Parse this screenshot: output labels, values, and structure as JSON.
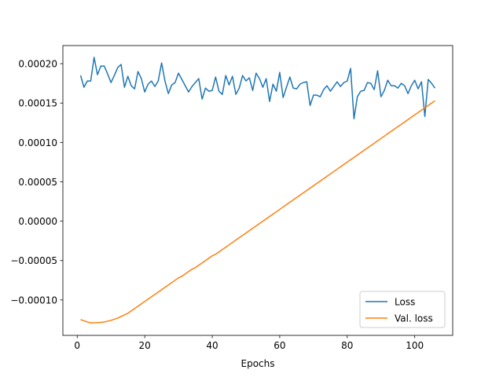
{
  "chart_data": {
    "type": "line",
    "title": "",
    "xlabel": "Epochs",
    "ylabel": "",
    "xlim": [
      -4.25,
      111.25
    ],
    "ylim": [
      -0.000145,
      0.000223
    ],
    "xticks": [
      0,
      20,
      40,
      60,
      80,
      100
    ],
    "xtick_labels": [
      "0",
      "20",
      "40",
      "60",
      "80",
      "100"
    ],
    "yticks": [
      -0.0001,
      -5e-05,
      0.0,
      5e-05,
      0.0001,
      0.00015,
      0.0002
    ],
    "ytick_labels": [
      "−0.00010",
      "−0.00005",
      "0.00000",
      "0.00005",
      "0.00010",
      "0.00015",
      "0.00020"
    ],
    "grid": false,
    "legend_position": "lower right",
    "x": [
      1,
      2,
      3,
      4,
      5,
      6,
      7,
      8,
      9,
      10,
      11,
      12,
      13,
      14,
      15,
      16,
      17,
      18,
      19,
      20,
      21,
      22,
      23,
      24,
      25,
      26,
      27,
      28,
      29,
      30,
      31,
      32,
      33,
      34,
      35,
      36,
      37,
      38,
      39,
      40,
      41,
      42,
      43,
      44,
      45,
      46,
      47,
      48,
      49,
      50,
      51,
      52,
      53,
      54,
      55,
      56,
      57,
      58,
      59,
      60,
      61,
      62,
      63,
      64,
      65,
      66,
      67,
      68,
      69,
      70,
      71,
      72,
      73,
      74,
      75,
      76,
      77,
      78,
      79,
      80,
      81,
      82,
      83,
      84,
      85,
      86,
      87,
      88,
      89,
      90,
      91,
      92,
      93,
      94,
      95,
      96,
      97,
      98,
      99,
      100,
      101,
      102,
      103,
      104,
      105,
      106
    ],
    "series": [
      {
        "name": "Loss",
        "color": "#1f77b4",
        "values": [
          0.000185,
          0.00017,
          0.000178,
          0.000178,
          0.000208,
          0.000186,
          0.000197,
          0.000197,
          0.000187,
          0.000176,
          0.000185,
          0.000195,
          0.000199,
          0.00017,
          0.000184,
          0.000172,
          0.000168,
          0.00019,
          0.000181,
          0.000164,
          0.000174,
          0.000178,
          0.000171,
          0.000178,
          0.000201,
          0.000178,
          0.000162,
          0.000173,
          0.000176,
          0.000188,
          0.00018,
          0.000172,
          0.000164,
          0.000171,
          0.000176,
          0.000181,
          0.000155,
          0.000169,
          0.000165,
          0.000166,
          0.000183,
          0.000165,
          0.000161,
          0.000185,
          0.000173,
          0.000184,
          0.000161,
          0.000169,
          0.000185,
          0.000178,
          0.000182,
          0.000166,
          0.000188,
          0.000181,
          0.00017,
          0.000181,
          0.000152,
          0.000174,
          0.000165,
          0.000189,
          0.000157,
          0.00017,
          0.000183,
          0.000169,
          0.000168,
          0.000174,
          0.000176,
          0.000177,
          0.000147,
          0.00016,
          0.00016,
          0.000158,
          0.000167,
          0.000172,
          0.000165,
          0.000171,
          0.000177,
          0.000171,
          0.000176,
          0.000178,
          0.000194,
          0.00013,
          0.000158,
          0.000165,
          0.000166,
          0.000176,
          0.000175,
          0.000167,
          0.000191,
          0.000158,
          0.000166,
          0.000179,
          0.000172,
          0.000172,
          0.000169,
          0.000175,
          0.000172,
          0.000162,
          0.000172,
          0.000179,
          0.000168,
          0.000177,
          0.000133,
          0.00018,
          0.000175,
          0.000169
        ]
      },
      {
        "name": "Val. loss",
        "color": "#ff7f0e",
        "values": [
          -0.000125,
          -0.0001265,
          -0.000128,
          -0.000129,
          -0.000129,
          -0.0001288,
          -0.0001285,
          -0.000128,
          -0.000127,
          -0.000126,
          -0.0001245,
          -0.000123,
          -0.000121,
          -0.000119,
          -0.000117,
          -0.000114,
          -0.000111,
          -0.000108,
          -0.000105,
          -0.000102,
          -9.9e-05,
          -9.6e-05,
          -9.3e-05,
          -9e-05,
          -8.7e-05,
          -8.4e-05,
          -8.1e-05,
          -7.8e-05,
          -7.5e-05,
          -7.2e-05,
          -7e-05,
          -6.7e-05,
          -6.4e-05,
          -6.1e-05,
          -5.9e-05,
          -5.6e-05,
          -5.3e-05,
          -5e-05,
          -4.7e-05,
          -4.4e-05,
          -4.2e-05,
          -3.9e-05,
          -3.6e-05,
          -3.3e-05,
          -3e-05,
          -2.7e-05,
          -2.4e-05,
          -2.1e-05,
          -1.8e-05,
          -1.5e-05,
          -1.2e-05,
          -9e-06,
          -6e-06,
          -3e-06,
          0.0,
          3e-06,
          6e-06,
          9e-06,
          1.2e-05,
          1.5e-05,
          1.8e-05,
          2.1e-05,
          2.4e-05,
          2.7e-05,
          3e-05,
          3.3e-05,
          3.6e-05,
          3.9e-05,
          4.2e-05,
          4.5e-05,
          4.8e-05,
          5.1e-05,
          5.4e-05,
          5.7e-05,
          6e-05,
          6.3e-05,
          6.6e-05,
          6.9e-05,
          7.2e-05,
          7.5e-05,
          7.8e-05,
          8.1e-05,
          8.4e-05,
          8.7e-05,
          9e-05,
          9.3e-05,
          9.6e-05,
          9.9e-05,
          0.000102,
          0.000105,
          0.000108,
          0.000111,
          0.000114,
          0.000117,
          0.00012,
          0.000123,
          0.000126,
          0.000129,
          0.000132,
          0.000135,
          0.000138,
          0.000141,
          0.000144,
          0.000147,
          0.00015,
          0.000153
        ]
      }
    ]
  }
}
